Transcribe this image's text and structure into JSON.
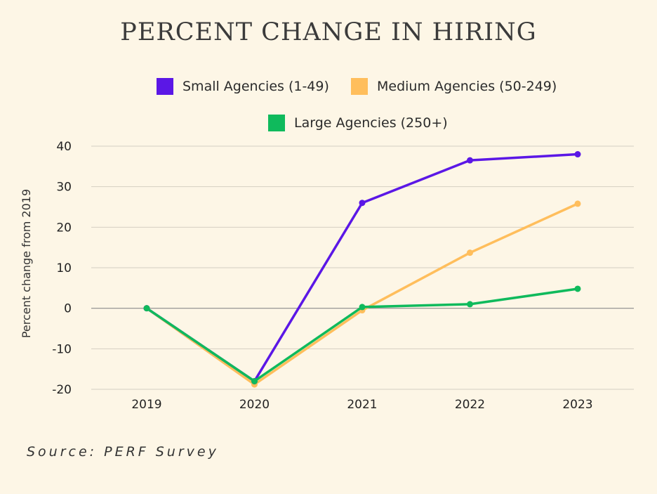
{
  "chart_data": {
    "type": "line",
    "title": "PERCENT CHANGE IN HIRING",
    "ylabel": "Percent change from 2019",
    "xlabel": "",
    "categories": [
      "2019",
      "2020",
      "2021",
      "2022",
      "2023"
    ],
    "yticks": [
      "40",
      "30",
      "20",
      "10",
      "0",
      "-10",
      "-20"
    ],
    "ylim": [
      -20,
      40
    ],
    "grid": true,
    "legend_position": "top",
    "series": [
      {
        "name": "Small Agencies (1-49)",
        "color": "#5b17e6",
        "values": [
          0,
          -18,
          26,
          36.5,
          38
        ]
      },
      {
        "name": "Medium Agencies (50-249)",
        "color": "#ffbe5c",
        "values": [
          0,
          -18.8,
          -0.5,
          13.7,
          25.8
        ]
      },
      {
        "name": "Large Agencies (250+)",
        "color": "#0fba5c",
        "values": [
          0,
          -18,
          0.3,
          1,
          4.8
        ]
      }
    ],
    "source": "Source: PERF Survey"
  }
}
